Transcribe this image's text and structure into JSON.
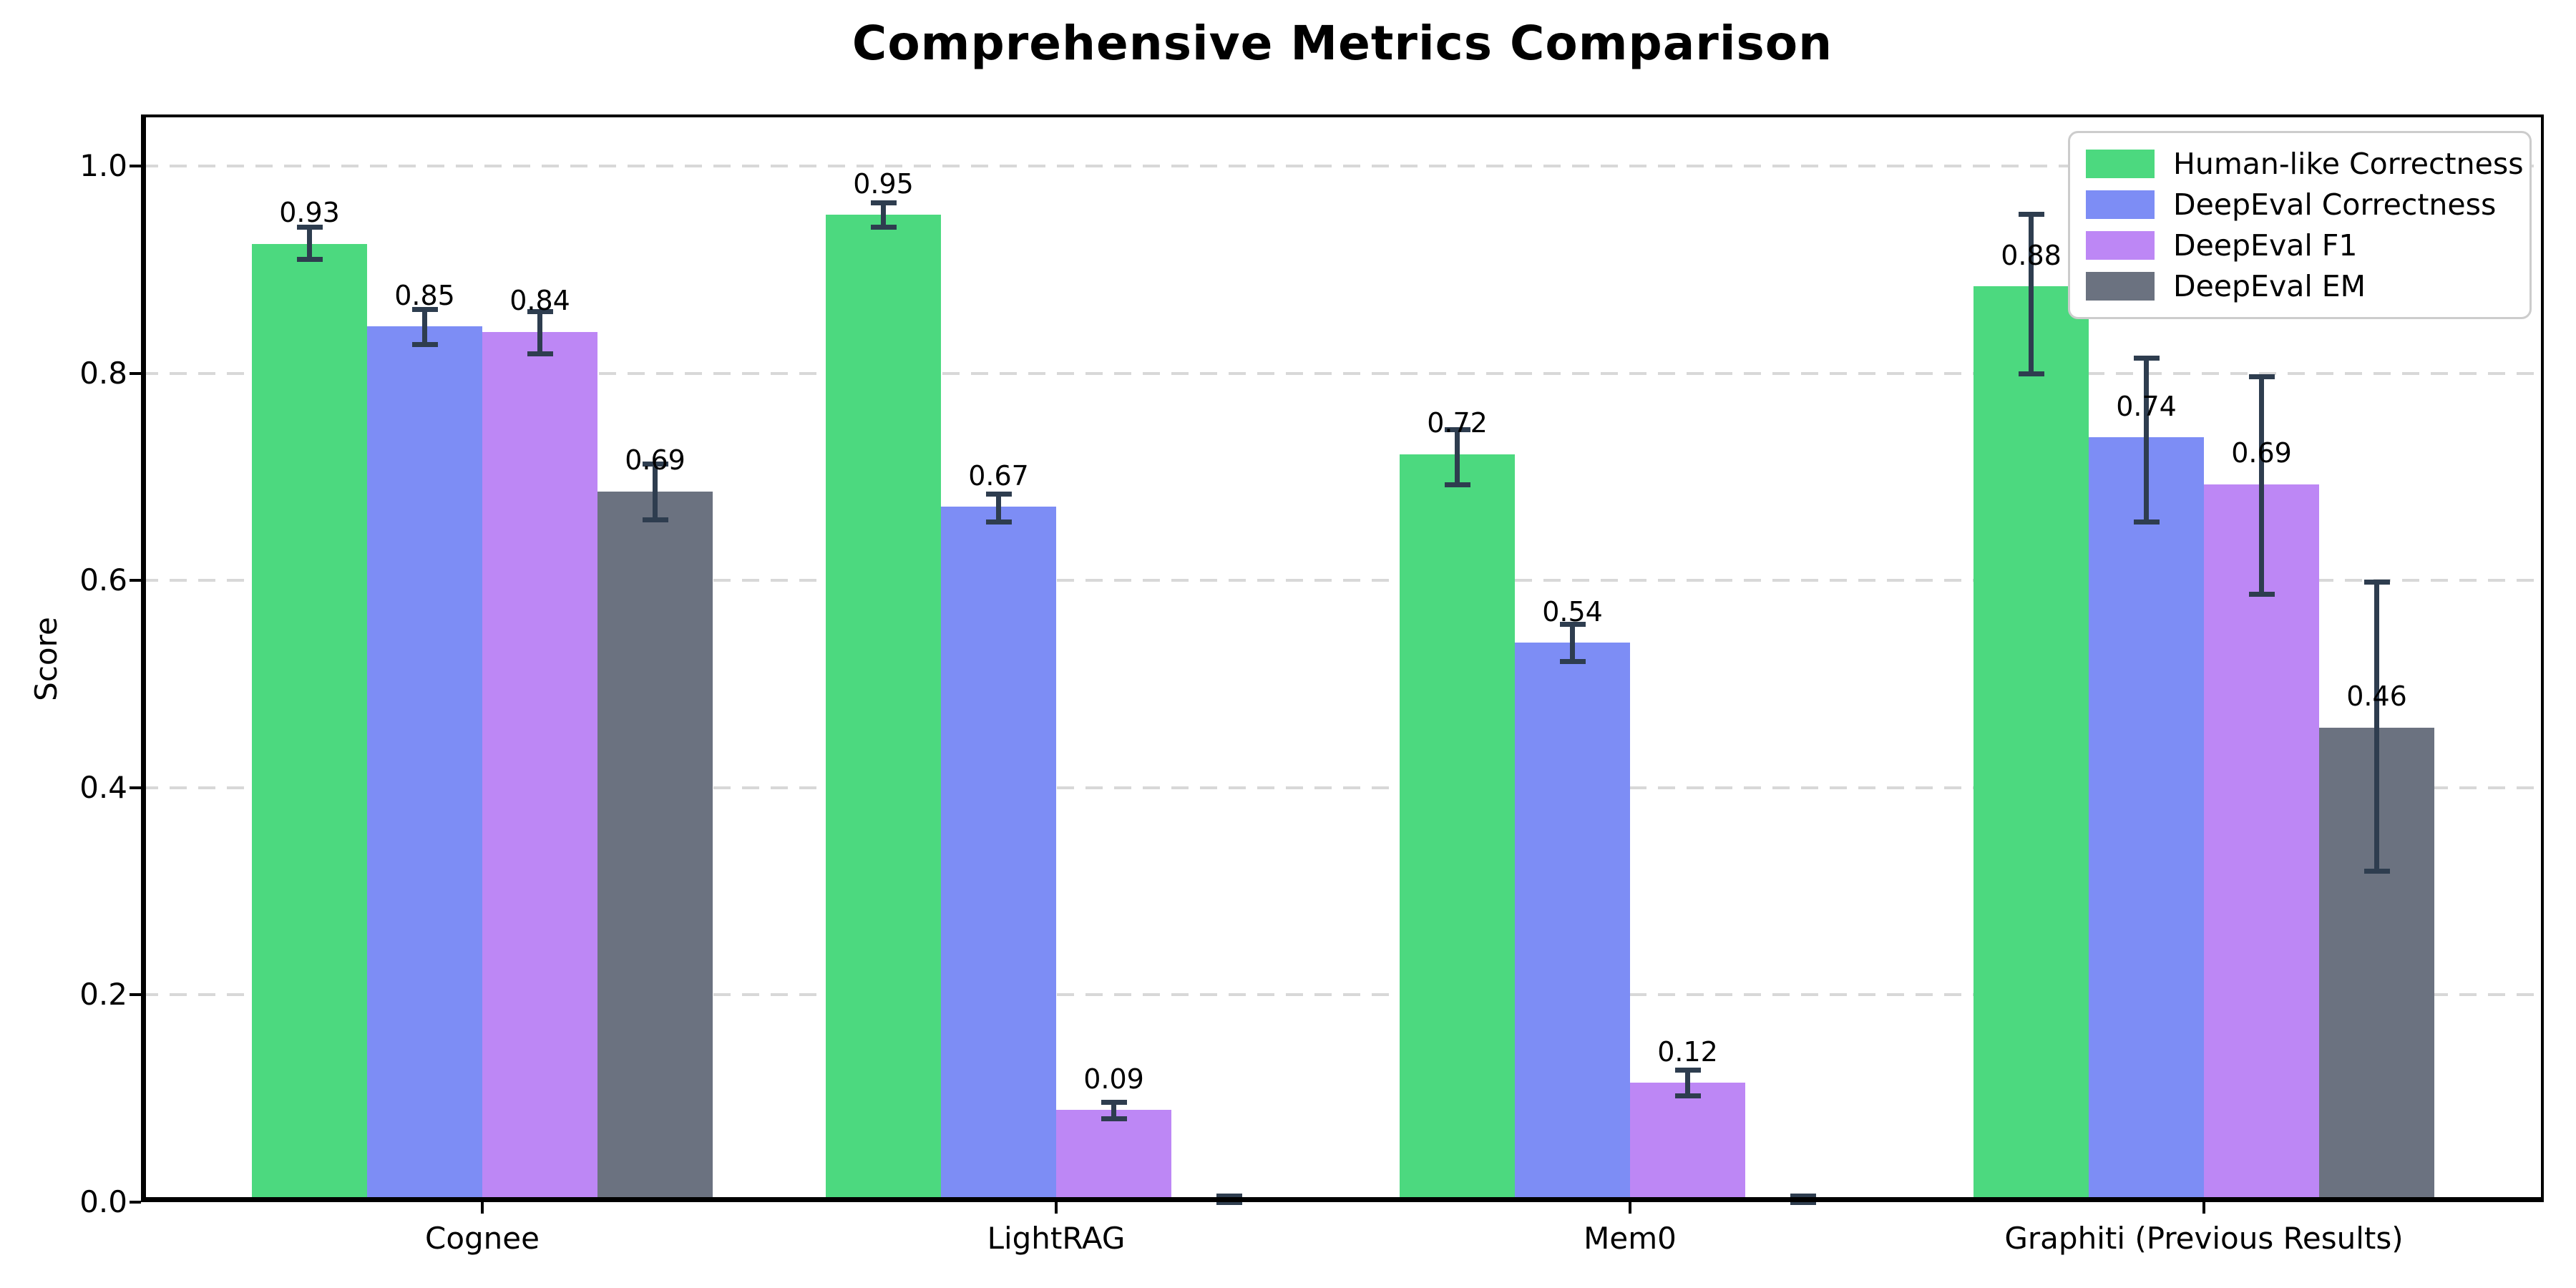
{
  "title": "Comprehensive Metrics Comparison",
  "chart_data": {
    "type": "bar",
    "title": "Comprehensive Metrics Comparison",
    "xlabel": "",
    "ylabel": "Score",
    "ylim": [
      0.0,
      1.05
    ],
    "grid": "horizontal-dashed",
    "legend_position": "upper-right",
    "error_bar_color": "#2e3d4f",
    "categories": [
      "Cognee",
      "LightRAG",
      "Mem0",
      "Graphiti (Previous Results)"
    ],
    "yticks": [
      {
        "value": 0.0,
        "label": "0.0"
      },
      {
        "value": 0.2,
        "label": "0.2"
      },
      {
        "value": 0.4,
        "label": "0.4"
      },
      {
        "value": 0.6,
        "label": "0.6"
      },
      {
        "value": 0.8,
        "label": "0.8"
      },
      {
        "value": 1.0,
        "label": "1.0"
      }
    ],
    "series": [
      {
        "name": "Human-like Correctness",
        "color": "#4cd97f",
        "values": [
          0.925,
          0.953,
          0.722,
          0.884
        ],
        "err_lo": [
          0.91,
          0.941,
          0.693,
          0.8
        ],
        "err_hi": [
          0.941,
          0.965,
          0.746,
          0.954
        ],
        "labels": [
          "0.93",
          "0.95",
          "0.72",
          "0.88"
        ]
      },
      {
        "name": "DeepEval Correctness",
        "color": "#7d8df5",
        "values": [
          0.845,
          0.671,
          0.54,
          0.738
        ],
        "err_lo": [
          0.828,
          0.657,
          0.522,
          0.657
        ],
        "err_hi": [
          0.862,
          0.684,
          0.558,
          0.815
        ],
        "labels": [
          "0.85",
          "0.67",
          "0.54",
          "0.74"
        ]
      },
      {
        "name": "DeepEval F1",
        "color": "#bd87f5",
        "values": [
          0.84,
          0.089,
          0.115,
          0.693
        ],
        "err_lo": [
          0.819,
          0.081,
          0.103,
          0.587
        ],
        "err_hi": [
          0.86,
          0.097,
          0.128,
          0.797
        ],
        "labels": [
          "0.84",
          "0.09",
          "0.12",
          "0.69"
        ]
      },
      {
        "name": "DeepEval EM",
        "color": "#6b7280",
        "values": [
          0.686,
          0.002,
          0.002,
          0.458
        ],
        "err_lo": [
          0.659,
          0.0,
          0.0,
          0.32
        ],
        "err_hi": [
          0.713,
          0.006,
          0.006,
          0.599
        ],
        "labels": [
          "0.69",
          null,
          null,
          "0.46"
        ]
      }
    ]
  }
}
